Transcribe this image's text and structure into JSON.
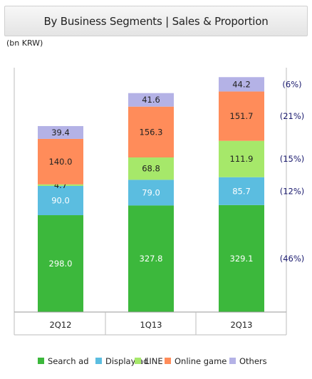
{
  "header": {
    "title": "By Business Segments | Sales & Proportion"
  },
  "chart_data": {
    "type": "bar",
    "stacked": true,
    "unit": "(bn KRW)",
    "categories": [
      "2Q12",
      "1Q13",
      "2Q13"
    ],
    "series": [
      {
        "name": "Search ad",
        "color": "#3cb83c",
        "values": [
          298.0,
          327.8,
          329.1
        ],
        "labels": [
          "298.0",
          "327.8",
          "329.1"
        ],
        "labelColor": "#ffffff"
      },
      {
        "name": "Display ad",
        "color": "#5bbde0",
        "values": [
          90.0,
          79.0,
          85.7
        ],
        "labels": [
          "90.0",
          "79.0",
          "85.7"
        ],
        "labelColor": "#ffffff"
      },
      {
        "name": "LINE",
        "color": "#a6e86a",
        "values": [
          4.7,
          68.8,
          111.9
        ],
        "labels": [
          "4.7",
          "68.8",
          "111.9"
        ],
        "labelColor": "#222222"
      },
      {
        "name": "Online game",
        "color": "#ff8c5a",
        "values": [
          140.0,
          156.3,
          151.7
        ],
        "labels": [
          "140.0",
          "156.3",
          "151.7"
        ],
        "labelColor": "#222222"
      },
      {
        "name": "Others",
        "color": "#b4b2e6",
        "values": [
          39.4,
          41.6,
          44.2
        ],
        "labels": [
          "39.4",
          "41.6",
          "44.2"
        ],
        "labelColor": "#222222"
      }
    ],
    "proportions_2Q13": [
      "(46%)",
      "(12%)",
      "(15%)",
      "(21%)",
      "(6%)"
    ],
    "legend_position": "bottom",
    "grid": false
  }
}
